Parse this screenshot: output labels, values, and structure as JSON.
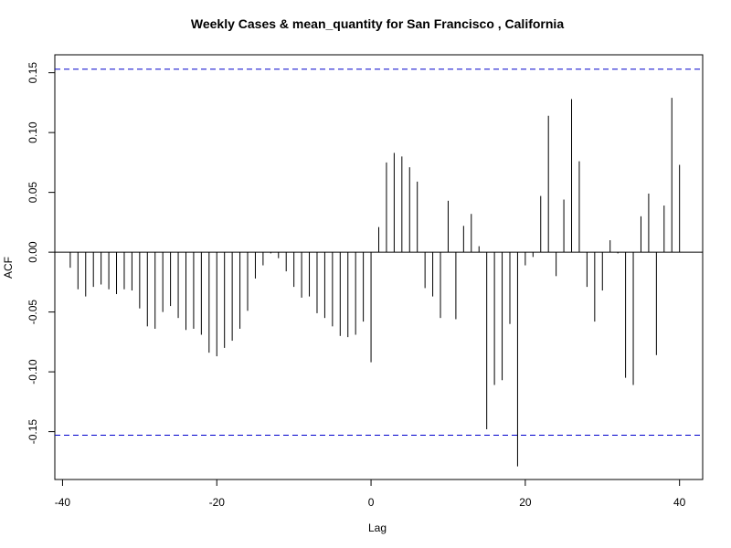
{
  "chart_data": {
    "type": "bar",
    "title": "Weekly Cases & mean_quantity for San Francisco , California",
    "xlabel": "Lag",
    "ylabel": "ACF",
    "xlim": [
      -41,
      43
    ],
    "ylim": [
      -0.19,
      0.165
    ],
    "xticks": [
      -40,
      -20,
      0,
      20,
      40
    ],
    "yticks": [
      -0.15,
      -0.1,
      -0.05,
      0.0,
      0.05,
      0.1,
      0.15
    ],
    "ytick_labels": [
      "-0.15",
      "-0.10",
      "-0.05",
      "0.00",
      "0.05",
      "0.10",
      "0.15"
    ],
    "confidence_bound": 0.153,
    "confidence_color": "#0000CC",
    "bar_color": "#000000",
    "lags": [
      -39,
      -38,
      -37,
      -36,
      -35,
      -34,
      -33,
      -32,
      -31,
      -30,
      -29,
      -28,
      -27,
      -26,
      -25,
      -24,
      -23,
      -22,
      -21,
      -20,
      -19,
      -18,
      -17,
      -16,
      -15,
      -14,
      -13,
      -12,
      -11,
      -10,
      -9,
      -8,
      -7,
      -6,
      -5,
      -4,
      -3,
      -2,
      -1,
      0,
      1,
      2,
      3,
      4,
      5,
      6,
      7,
      8,
      9,
      10,
      11,
      12,
      13,
      14,
      15,
      16,
      17,
      18,
      19,
      20,
      21,
      22,
      23,
      24,
      25,
      26,
      27,
      28,
      29,
      30,
      31,
      32,
      33,
      34,
      35,
      36,
      37,
      38,
      39,
      40
    ],
    "values": [
      -0.013,
      -0.031,
      -0.037,
      -0.029,
      -0.027,
      -0.031,
      -0.035,
      -0.031,
      -0.032,
      -0.047,
      -0.062,
      -0.064,
      -0.05,
      -0.045,
      -0.055,
      -0.065,
      -0.064,
      -0.069,
      -0.084,
      -0.087,
      -0.08,
      -0.074,
      -0.064,
      -0.049,
      -0.022,
      -0.011,
      -0.001,
      -0.005,
      -0.016,
      -0.029,
      -0.038,
      -0.037,
      -0.051,
      -0.055,
      -0.062,
      -0.07,
      -0.071,
      -0.069,
      -0.058,
      -0.092,
      0.021,
      0.075,
      0.083,
      0.08,
      0.071,
      0.059,
      -0.03,
      -0.037,
      -0.055,
      0.043,
      -0.056,
      0.022,
      0.032,
      0.005,
      -0.148,
      -0.111,
      -0.107,
      -0.06,
      -0.179,
      -0.011,
      -0.004,
      0.047,
      0.114,
      -0.02,
      0.044,
      0.128,
      0.076,
      -0.029,
      -0.058,
      -0.032,
      0.01,
      -0.001,
      -0.105,
      -0.111,
      0.03,
      0.049,
      -0.086,
      0.039,
      0.129,
      0.073
    ]
  }
}
